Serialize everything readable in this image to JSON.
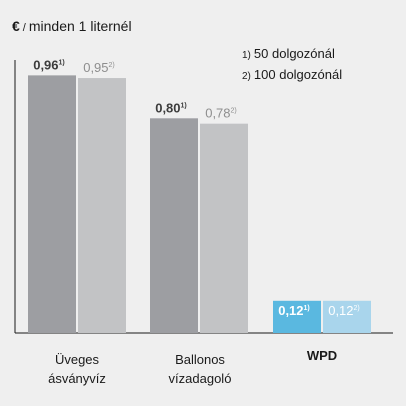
{
  "chart_data": {
    "type": "bar",
    "title": "",
    "unit_symbol": "€",
    "unit_separator": "/",
    "unit_text": "minden 1 liternél",
    "categories": [
      {
        "line1": "Üveges",
        "line2": "ásványvíz",
        "bold": false
      },
      {
        "line1": "Ballonos",
        "line2": "vízadagoló",
        "bold": false
      },
      {
        "line1": "WPD",
        "line2": "",
        "bold": true
      }
    ],
    "legend": [
      {
        "num": "1)",
        "text": "50 dolgozónál"
      },
      {
        "num": "2)",
        "text": "100 dolgozónál"
      }
    ],
    "series": [
      {
        "marker": "1)",
        "values": [
          0.96,
          0.8,
          0.12
        ],
        "labels": [
          "0,96",
          "0,80",
          "0,12"
        ]
      },
      {
        "marker": "2)",
        "values": [
          0.95,
          0.78,
          0.12
        ],
        "labels": [
          "0,95",
          "0,78",
          "0,12"
        ]
      }
    ],
    "ylim": [
      0,
      0.98
    ],
    "grid": false,
    "legend_position": "top-right",
    "colors": {
      "series1": "#9d9ea2",
      "series2": "#c2c3c5",
      "highlight1": "#5ab8e0",
      "highlight2": "#a9d5ec",
      "label1": "#3c3c3c",
      "label2": "#8e8e8e",
      "highlight_label": "#ffffff",
      "axis": "#1a1a1a"
    }
  }
}
